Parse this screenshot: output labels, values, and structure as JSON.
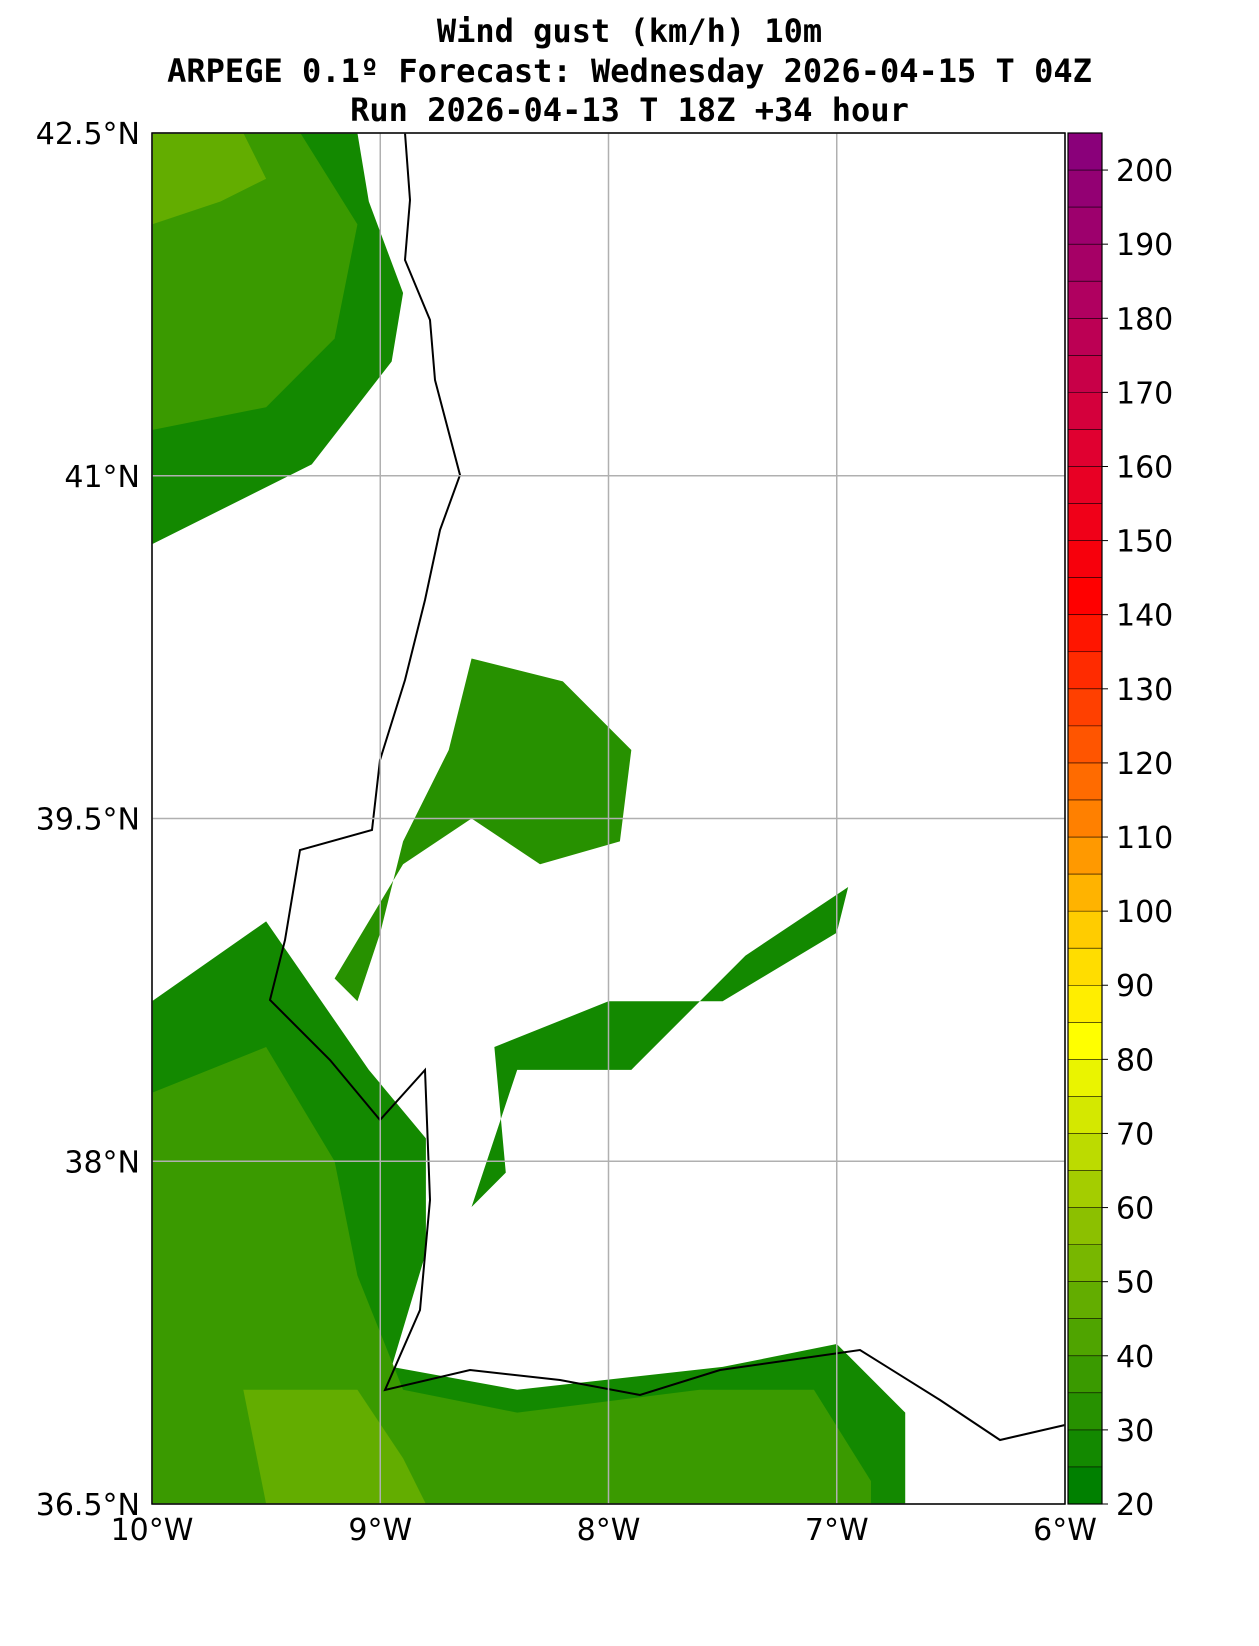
{
  "chart_data": {
    "type": "heatmap",
    "title": [
      "Wind gust (km/h) 10m",
      "ARPEGE 0.1º Forecast: Wednesday 2026-04-15 T 04Z",
      "Run 2026-04-13 T 18Z +34 hour"
    ],
    "xlim": [
      -10,
      -6
    ],
    "ylim": [
      36.5,
      42.5
    ],
    "x_ticks": [
      {
        "v": -10,
        "label": "10°W"
      },
      {
        "v": -9,
        "label": "9°W"
      },
      {
        "v": -8,
        "label": "8°W"
      },
      {
        "v": -7,
        "label": "7°W"
      },
      {
        "v": -6,
        "label": "6°W"
      }
    ],
    "y_ticks": [
      {
        "v": 42.5,
        "label": "42.5°N"
      },
      {
        "v": 41,
        "label": "41°N"
      },
      {
        "v": 39.5,
        "label": "39.5°N"
      },
      {
        "v": 38,
        "label": "38°N"
      },
      {
        "v": 36.5,
        "label": "36.5°N"
      }
    ],
    "grid": true,
    "colorbar": {
      "min": 20,
      "max": 205,
      "step": 5,
      "ticks": [
        20,
        30,
        40,
        50,
        60,
        70,
        80,
        90,
        100,
        110,
        120,
        130,
        140,
        150,
        160,
        170,
        180,
        190,
        200
      ],
      "placement": "right",
      "stops": [
        [
          20,
          "#008000"
        ],
        [
          35,
          "#3a9a00"
        ],
        [
          55,
          "#8cc000"
        ],
        [
          70,
          "#d4e800"
        ],
        [
          80,
          "#ffff00"
        ],
        [
          95,
          "#ffcc00"
        ],
        [
          110,
          "#ff8000"
        ],
        [
          140,
          "#ff0000"
        ],
        [
          160,
          "#e00030"
        ],
        [
          180,
          "#b00060"
        ],
        [
          205,
          "#800080"
        ]
      ]
    },
    "observed_range_kmh": [
      20,
      50
    ],
    "gust_regions": [
      {
        "name": "atlantic-north",
        "level": 25,
        "pts": [
          [
            -10,
            42.5
          ],
          [
            -9.1,
            42.5
          ],
          [
            -9.05,
            42.2
          ],
          [
            -8.9,
            41.8
          ],
          [
            -8.95,
            41.5
          ],
          [
            -9.3,
            41.05
          ],
          [
            -9.6,
            40.9
          ],
          [
            -10,
            40.7
          ]
        ]
      },
      {
        "name": "atlantic-north-inner",
        "level": 35,
        "pts": [
          [
            -10,
            42.5
          ],
          [
            -9.35,
            42.5
          ],
          [
            -9.1,
            42.1
          ],
          [
            -9.2,
            41.6
          ],
          [
            -9.5,
            41.3
          ],
          [
            -10,
            41.2
          ]
        ]
      },
      {
        "name": "atlantic-north-core",
        "level": 45,
        "pts": [
          [
            -10,
            42.5
          ],
          [
            -9.6,
            42.5
          ],
          [
            -9.5,
            42.3
          ],
          [
            -9.7,
            42.2
          ],
          [
            -10,
            42.1
          ]
        ]
      },
      {
        "name": "atlantic-south",
        "level": 25,
        "pts": [
          [
            -10,
            38.7
          ],
          [
            -9.5,
            39.05
          ],
          [
            -9.05,
            38.4
          ],
          [
            -8.8,
            38.1
          ],
          [
            -8.8,
            37.6
          ],
          [
            -8.95,
            37.1
          ],
          [
            -8.4,
            37.0
          ],
          [
            -7.5,
            37.1
          ],
          [
            -7.0,
            37.2
          ],
          [
            -6.7,
            36.9
          ],
          [
            -6.7,
            36.5
          ],
          [
            -10,
            36.5
          ]
        ]
      },
      {
        "name": "atlantic-south-inner",
        "level": 35,
        "pts": [
          [
            -10,
            38.3
          ],
          [
            -9.5,
            38.5
          ],
          [
            -9.2,
            38.0
          ],
          [
            -9.1,
            37.5
          ],
          [
            -8.9,
            37.0
          ],
          [
            -8.4,
            36.9
          ],
          [
            -7.6,
            37.0
          ],
          [
            -7.1,
            37.0
          ],
          [
            -6.85,
            36.6
          ],
          [
            -6.85,
            36.5
          ],
          [
            -10,
            36.5
          ]
        ]
      },
      {
        "name": "atlantic-south-core",
        "level": 45,
        "pts": [
          [
            -9.6,
            37.0
          ],
          [
            -9.1,
            37.0
          ],
          [
            -8.9,
            36.7
          ],
          [
            -8.8,
            36.5
          ],
          [
            -9.5,
            36.5
          ]
        ]
      },
      {
        "name": "tagus-valley",
        "level": 30,
        "pts": [
          [
            -8.6,
            40.2
          ],
          [
            -8.2,
            40.1
          ],
          [
            -7.9,
            39.8
          ],
          [
            -7.95,
            39.4
          ],
          [
            -8.3,
            39.3
          ],
          [
            -8.6,
            39.5
          ],
          [
            -8.9,
            39.3
          ],
          [
            -9.2,
            38.8
          ],
          [
            -9.1,
            38.7
          ],
          [
            -9.0,
            39.0
          ],
          [
            -8.9,
            39.4
          ],
          [
            -8.7,
            39.8
          ]
        ]
      },
      {
        "name": "alentejo",
        "level": 25,
        "pts": [
          [
            -8.5,
            38.5
          ],
          [
            -8.0,
            38.7
          ],
          [
            -7.5,
            38.7
          ],
          [
            -7.0,
            39.0
          ],
          [
            -6.95,
            39.2
          ],
          [
            -7.4,
            38.9
          ],
          [
            -7.9,
            38.4
          ],
          [
            -8.4,
            38.4
          ],
          [
            -8.6,
            37.8
          ],
          [
            -8.45,
            37.95
          ]
        ]
      }
    ]
  }
}
